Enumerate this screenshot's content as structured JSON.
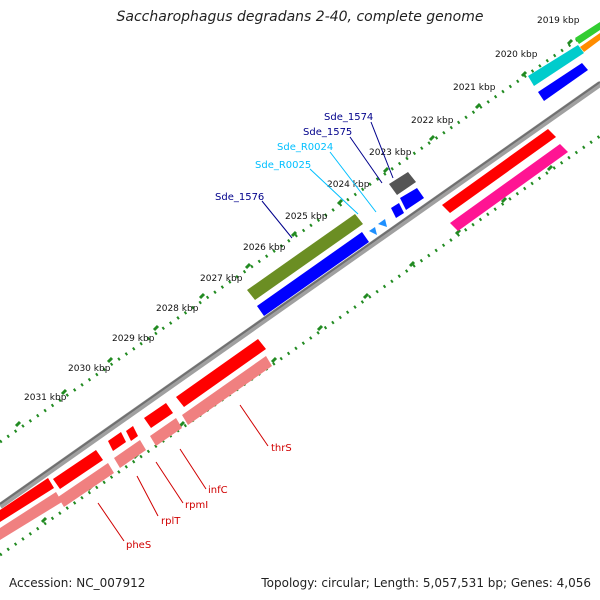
{
  "title": "Saccharophagus degradans 2-40, complete genome",
  "footer": {
    "accession": "Accession: NC_007912",
    "topology": "Topology: circular; Length: 5,057,531 bp; Genes: 4,056"
  },
  "tick_labels": [
    "2019 kbp",
    "2020 kbp",
    "2021 kbp",
    "2022 kbp",
    "2023 kbp",
    "2024 kbp",
    "2025 kbp",
    "2026 kbp",
    "2027 kbp",
    "2028 kbp",
    "2029 kbp",
    "2030 kbp",
    "2031 kbp"
  ],
  "gene_labels": {
    "sde_1574": "Sde_1574",
    "sde_1575": "Sde_1575",
    "sde_r0024": "Sde_R0024",
    "sde_r0025": "Sde_R0025",
    "sde_1576": "Sde_1576",
    "thrs": "thrS",
    "infc": "infC",
    "rpmi": "rpmI",
    "rplt": "rplT",
    "phes": "pheS"
  },
  "colors": {
    "backbone": "#808080",
    "tick": "#228b22",
    "cds_red": "#ff0000",
    "cds_blue": "#0000ff",
    "cds_olive": "#6b8e23",
    "cds_magenta": "#ff1493",
    "cds_cyan": "#00cccc",
    "cds_orange": "#ff8c00",
    "cds_green": "#32cd32",
    "cds_gray": "#555555",
    "cds_pink": "#f08080",
    "trna": "#1e90ff",
    "label_blue": "#00008b",
    "label_cyan": "#00bfff",
    "label_red": "#d00000"
  }
}
